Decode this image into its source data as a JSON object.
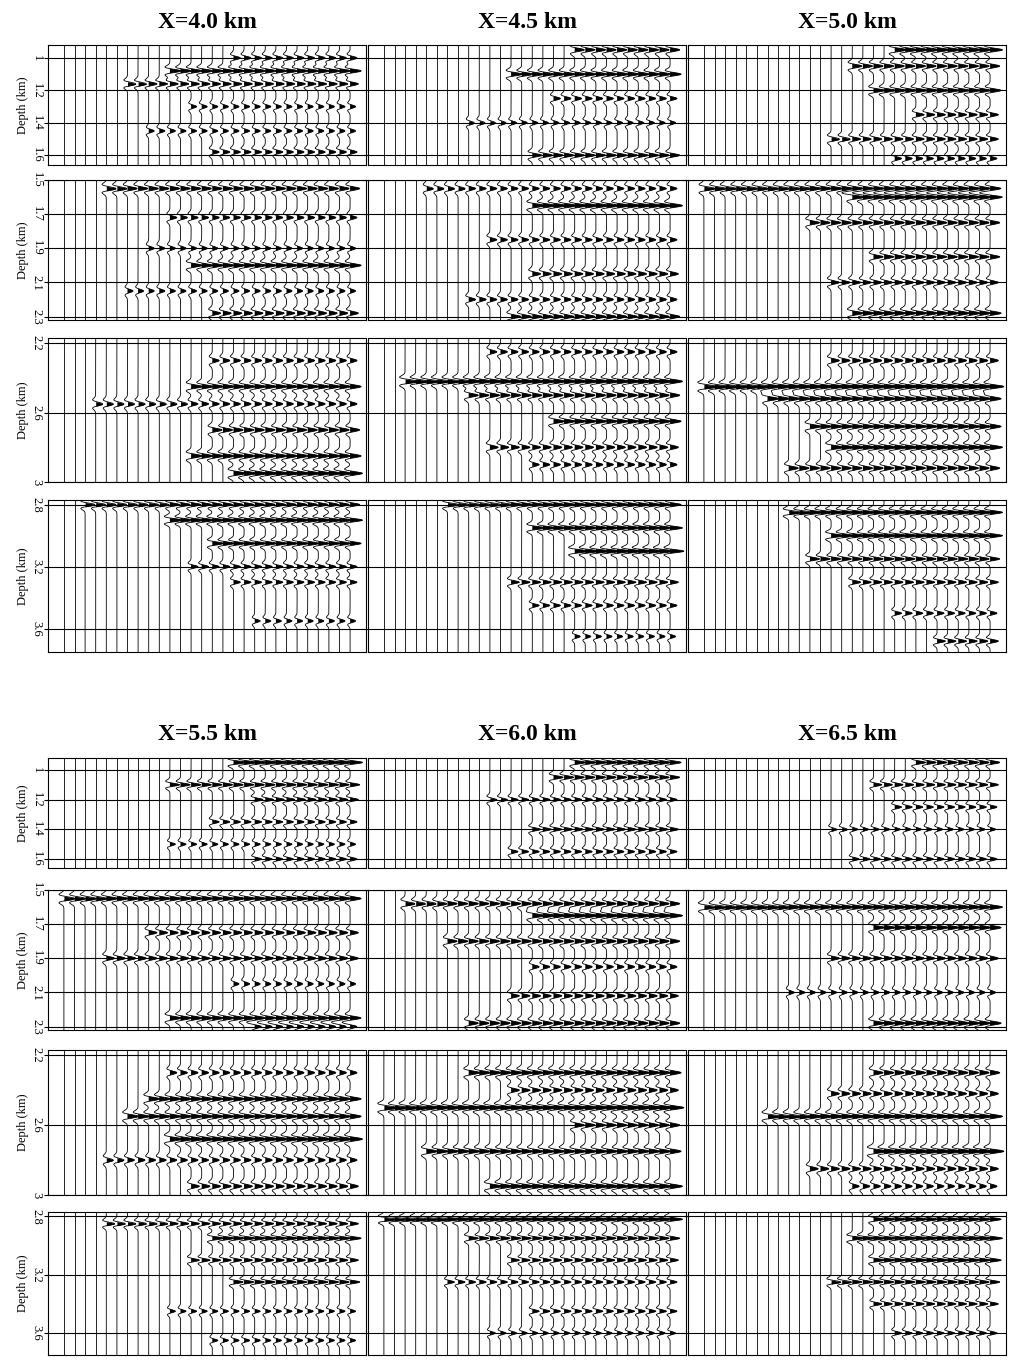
{
  "chart_data": {
    "type": "wiggle",
    "grid": true,
    "tick_labels": "y",
    "windows": [
      {
        "ylabel": "Depth (km)",
        "ylim": [
          0.92,
          1.66
        ],
        "yticks": [
          1,
          1.2,
          1.4,
          1.6
        ]
      },
      {
        "ylabel": "Depth (km)",
        "ylim": [
          1.5,
          2.32
        ],
        "yticks": [
          1.5,
          1.7,
          1.9,
          2.1,
          2.3
        ]
      },
      {
        "ylabel": "Depth (km)",
        "ylim": [
          2.17,
          3.0
        ],
        "yticks": [
          2.2,
          2.6,
          3
        ]
      },
      {
        "ylabel": "Depth (km)",
        "ylim": [
          2.77,
          3.75
        ],
        "yticks": [
          2.8,
          3.2,
          3.6
        ]
      }
    ],
    "panels": [
      {
        "title": "X=4.0 km",
        "traces": 28,
        "events": [
          [
            {
              "depth": 1.0,
              "amplitude": 0.5,
              "from_trace": 16
            },
            {
              "depth": 1.08,
              "amplitude": 0.8,
              "from_trace": 10
            },
            {
              "depth": 1.16,
              "amplitude": 0.6,
              "from_trace": 6
            },
            {
              "depth": 1.3,
              "amplitude": 0.4,
              "from_trace": 12
            },
            {
              "depth": 1.45,
              "amplitude": 0.4,
              "from_trace": 8
            },
            {
              "depth": 1.58,
              "amplitude": 0.5,
              "from_trace": 14
            }
          ],
          [
            {
              "depth": 1.55,
              "amplitude": 0.7,
              "from_trace": 4
            },
            {
              "depth": 1.72,
              "amplitude": 0.5,
              "from_trace": 10
            },
            {
              "depth": 1.9,
              "amplitude": 0.4,
              "from_trace": 8
            },
            {
              "depth": 2.0,
              "amplitude": 0.8,
              "from_trace": 12
            },
            {
              "depth": 2.15,
              "amplitude": 0.4,
              "from_trace": 6
            },
            {
              "depth": 2.28,
              "amplitude": 0.6,
              "from_trace": 14
            }
          ],
          [
            {
              "depth": 2.3,
              "amplitude": 0.5,
              "from_trace": 14
            },
            {
              "depth": 2.45,
              "amplitude": 0.8,
              "from_trace": 12
            },
            {
              "depth": 2.55,
              "amplitude": 0.5,
              "from_trace": 3
            },
            {
              "depth": 2.7,
              "amplitude": 0.7,
              "from_trace": 14
            },
            {
              "depth": 2.85,
              "amplitude": 0.8,
              "from_trace": 12
            },
            {
              "depth": 2.95,
              "amplitude": 0.9,
              "from_trace": 16
            }
          ],
          [
            {
              "depth": 2.8,
              "amplitude": 0.7,
              "from_trace": 2
            },
            {
              "depth": 2.9,
              "amplitude": 0.9,
              "from_trace": 10
            },
            {
              "depth": 3.05,
              "amplitude": 0.8,
              "from_trace": 14
            },
            {
              "depth": 3.2,
              "amplitude": 0.5,
              "from_trace": 12
            },
            {
              "depth": 3.3,
              "amplitude": 0.5,
              "from_trace": 16
            },
            {
              "depth": 3.55,
              "amplitude": 0.4,
              "from_trace": 18
            }
          ]
        ]
      },
      {
        "title": "X=4.5 km",
        "traces": 28,
        "events": [
          [
            {
              "depth": 0.95,
              "amplitude": 0.7,
              "from_trace": 18
            },
            {
              "depth": 1.1,
              "amplitude": 0.8,
              "from_trace": 12
            },
            {
              "depth": 1.25,
              "amplitude": 0.5,
              "from_trace": 16
            },
            {
              "depth": 1.4,
              "amplitude": 0.4,
              "from_trace": 8
            },
            {
              "depth": 1.6,
              "amplitude": 0.7,
              "from_trace": 14
            }
          ],
          [
            {
              "depth": 1.55,
              "amplitude": 0.5,
              "from_trace": 4
            },
            {
              "depth": 1.65,
              "amplitude": 0.9,
              "from_trace": 14
            },
            {
              "depth": 1.85,
              "amplitude": 0.5,
              "from_trace": 10
            },
            {
              "depth": 2.05,
              "amplitude": 0.6,
              "from_trace": 14
            },
            {
              "depth": 2.2,
              "amplitude": 0.5,
              "from_trace": 8
            },
            {
              "depth": 2.3,
              "amplitude": 0.7,
              "from_trace": 12
            }
          ],
          [
            {
              "depth": 2.25,
              "amplitude": 0.5,
              "from_trace": 10
            },
            {
              "depth": 2.42,
              "amplitude": 0.9,
              "from_trace": 2
            },
            {
              "depth": 2.5,
              "amplitude": 0.7,
              "from_trace": 8
            },
            {
              "depth": 2.65,
              "amplitude": 0.8,
              "from_trace": 16
            },
            {
              "depth": 2.8,
              "amplitude": 0.6,
              "from_trace": 10
            },
            {
              "depth": 2.9,
              "amplitude": 0.5,
              "from_trace": 14
            }
          ],
          [
            {
              "depth": 2.8,
              "amplitude": 0.8,
              "from_trace": 6
            },
            {
              "depth": 2.95,
              "amplitude": 0.9,
              "from_trace": 14
            },
            {
              "depth": 3.1,
              "amplitude": 1.0,
              "from_trace": 18
            },
            {
              "depth": 3.3,
              "amplitude": 0.6,
              "from_trace": 12
            },
            {
              "depth": 3.45,
              "amplitude": 0.5,
              "from_trace": 14
            },
            {
              "depth": 3.65,
              "amplitude": 0.4,
              "from_trace": 18
            }
          ]
        ]
      },
      {
        "title": "X=5.0 km",
        "traces": 28,
        "events": [
          [
            {
              "depth": 0.95,
              "amplitude": 0.9,
              "from_trace": 18
            },
            {
              "depth": 1.05,
              "amplitude": 0.7,
              "from_trace": 14
            },
            {
              "depth": 1.2,
              "amplitude": 0.8,
              "from_trace": 16
            },
            {
              "depth": 1.35,
              "amplitude": 0.6,
              "from_trace": 20
            },
            {
              "depth": 1.5,
              "amplitude": 0.6,
              "from_trace": 12
            },
            {
              "depth": 1.62,
              "amplitude": 0.5,
              "from_trace": 18
            }
          ],
          [
            {
              "depth": 1.55,
              "amplitude": 0.8,
              "from_trace": 0
            },
            {
              "depth": 1.6,
              "amplitude": 0.9,
              "from_trace": 14
            },
            {
              "depth": 1.75,
              "amplitude": 0.7,
              "from_trace": 10
            },
            {
              "depth": 1.95,
              "amplitude": 0.7,
              "from_trace": 16
            },
            {
              "depth": 2.1,
              "amplitude": 0.6,
              "from_trace": 12
            },
            {
              "depth": 2.28,
              "amplitude": 0.8,
              "from_trace": 14
            }
          ],
          [
            {
              "depth": 2.3,
              "amplitude": 0.6,
              "from_trace": 12
            },
            {
              "depth": 2.45,
              "amplitude": 1.0,
              "from_trace": 0
            },
            {
              "depth": 2.52,
              "amplitude": 0.8,
              "from_trace": 6
            },
            {
              "depth": 2.68,
              "amplitude": 0.8,
              "from_trace": 10
            },
            {
              "depth": 2.8,
              "amplitude": 0.9,
              "from_trace": 12
            },
            {
              "depth": 2.92,
              "amplitude": 0.7,
              "from_trace": 8
            }
          ],
          [
            {
              "depth": 2.85,
              "amplitude": 0.9,
              "from_trace": 8
            },
            {
              "depth": 3.0,
              "amplitude": 0.9,
              "from_trace": 12
            },
            {
              "depth": 3.15,
              "amplitude": 0.7,
              "from_trace": 10
            },
            {
              "depth": 3.3,
              "amplitude": 0.6,
              "from_trace": 14
            },
            {
              "depth": 3.5,
              "amplitude": 0.5,
              "from_trace": 18
            },
            {
              "depth": 3.68,
              "amplitude": 0.6,
              "from_trace": 22
            }
          ]
        ]
      },
      {
        "title": "X=5.5 km",
        "traces": 28,
        "events": [
          [
            {
              "depth": 0.95,
              "amplitude": 0.9,
              "from_trace": 16
            },
            {
              "depth": 1.1,
              "amplitude": 0.7,
              "from_trace": 10
            },
            {
              "depth": 1.2,
              "amplitude": 0.6,
              "from_trace": 18
            },
            {
              "depth": 1.35,
              "amplitude": 0.5,
              "from_trace": 14
            },
            {
              "depth": 1.5,
              "amplitude": 0.4,
              "from_trace": 10
            },
            {
              "depth": 1.6,
              "amplitude": 0.5,
              "from_trace": 18
            }
          ],
          [
            {
              "depth": 1.55,
              "amplitude": 0.8,
              "from_trace": 0
            },
            {
              "depth": 1.75,
              "amplitude": 0.6,
              "from_trace": 8
            },
            {
              "depth": 1.9,
              "amplitude": 0.6,
              "from_trace": 4
            },
            {
              "depth": 2.05,
              "amplitude": 0.4,
              "from_trace": 16
            },
            {
              "depth": 2.25,
              "amplitude": 0.8,
              "from_trace": 10
            },
            {
              "depth": 2.3,
              "amplitude": 0.5,
              "from_trace": 18
            }
          ],
          [
            {
              "depth": 2.3,
              "amplitude": 0.5,
              "from_trace": 10
            },
            {
              "depth": 2.45,
              "amplitude": 0.8,
              "from_trace": 8
            },
            {
              "depth": 2.55,
              "amplitude": 0.8,
              "from_trace": 6
            },
            {
              "depth": 2.68,
              "amplitude": 0.9,
              "from_trace": 10
            },
            {
              "depth": 2.8,
              "amplitude": 0.5,
              "from_trace": 4
            },
            {
              "depth": 2.95,
              "amplitude": 0.6,
              "from_trace": 12
            }
          ],
          [
            {
              "depth": 2.85,
              "amplitude": 0.6,
              "from_trace": 4
            },
            {
              "depth": 2.95,
              "amplitude": 0.8,
              "from_trace": 14
            },
            {
              "depth": 3.1,
              "amplitude": 0.6,
              "from_trace": 12
            },
            {
              "depth": 3.25,
              "amplitude": 0.7,
              "from_trace": 16
            },
            {
              "depth": 3.45,
              "amplitude": 0.4,
              "from_trace": 10
            },
            {
              "depth": 3.65,
              "amplitude": 0.4,
              "from_trace": 14
            }
          ]
        ]
      },
      {
        "title": "X=6.0 km",
        "traces": 28,
        "events": [
          [
            {
              "depth": 0.95,
              "amplitude": 0.8,
              "from_trace": 18
            },
            {
              "depth": 1.05,
              "amplitude": 0.7,
              "from_trace": 16
            },
            {
              "depth": 1.2,
              "amplitude": 0.5,
              "from_trace": 10
            },
            {
              "depth": 1.4,
              "amplitude": 0.6,
              "from_trace": 14
            },
            {
              "depth": 1.55,
              "amplitude": 0.5,
              "from_trace": 12
            }
          ],
          [
            {
              "depth": 1.58,
              "amplitude": 0.7,
              "from_trace": 2
            },
            {
              "depth": 1.65,
              "amplitude": 0.9,
              "from_trace": 14
            },
            {
              "depth": 1.8,
              "amplitude": 0.7,
              "from_trace": 6
            },
            {
              "depth": 1.95,
              "amplitude": 0.5,
              "from_trace": 14
            },
            {
              "depth": 2.12,
              "amplitude": 0.6,
              "from_trace": 12
            },
            {
              "depth": 2.28,
              "amplitude": 0.7,
              "from_trace": 8
            }
          ],
          [
            {
              "depth": 2.3,
              "amplitude": 0.8,
              "from_trace": 8
            },
            {
              "depth": 2.4,
              "amplitude": 0.6,
              "from_trace": 12
            },
            {
              "depth": 2.5,
              "amplitude": 1.0,
              "from_trace": 0
            },
            {
              "depth": 2.6,
              "amplitude": 0.7,
              "from_trace": 18
            },
            {
              "depth": 2.75,
              "amplitude": 0.8,
              "from_trace": 4
            },
            {
              "depth": 2.95,
              "amplitude": 0.9,
              "from_trace": 10
            }
          ],
          [
            {
              "depth": 2.82,
              "amplitude": 0.9,
              "from_trace": 0
            },
            {
              "depth": 2.95,
              "amplitude": 0.7,
              "from_trace": 8
            },
            {
              "depth": 3.1,
              "amplitude": 0.6,
              "from_trace": 12
            },
            {
              "depth": 3.25,
              "amplitude": 0.5,
              "from_trace": 6
            },
            {
              "depth": 3.45,
              "amplitude": 0.5,
              "from_trace": 14
            },
            {
              "depth": 3.6,
              "amplitude": 0.4,
              "from_trace": 10
            }
          ]
        ]
      },
      {
        "title": "X=6.5 km",
        "traces": 28,
        "events": [
          [
            {
              "depth": 0.95,
              "amplitude": 0.7,
              "from_trace": 20
            },
            {
              "depth": 1.1,
              "amplitude": 0.6,
              "from_trace": 16
            },
            {
              "depth": 1.25,
              "amplitude": 0.5,
              "from_trace": 18
            },
            {
              "depth": 1.4,
              "amplitude": 0.4,
              "from_trace": 12
            },
            {
              "depth": 1.6,
              "amplitude": 0.5,
              "from_trace": 14
            }
          ],
          [
            {
              "depth": 1.6,
              "amplitude": 0.9,
              "from_trace": 0
            },
            {
              "depth": 1.72,
              "amplitude": 0.8,
              "from_trace": 16
            },
            {
              "depth": 1.9,
              "amplitude": 0.6,
              "from_trace": 12
            },
            {
              "depth": 2.1,
              "amplitude": 0.4,
              "from_trace": 8
            },
            {
              "depth": 2.28,
              "amplitude": 0.8,
              "from_trace": 16
            }
          ],
          [
            {
              "depth": 2.3,
              "amplitude": 0.7,
              "from_trace": 16
            },
            {
              "depth": 2.42,
              "amplitude": 0.6,
              "from_trace": 12
            },
            {
              "depth": 2.55,
              "amplitude": 0.9,
              "from_trace": 6
            },
            {
              "depth": 2.75,
              "amplitude": 1.0,
              "from_trace": 16
            },
            {
              "depth": 2.85,
              "amplitude": 0.6,
              "from_trace": 10
            },
            {
              "depth": 2.95,
              "amplitude": 0.5,
              "from_trace": 14
            }
          ],
          [
            {
              "depth": 2.82,
              "amplitude": 0.8,
              "from_trace": 16
            },
            {
              "depth": 2.95,
              "amplitude": 0.9,
              "from_trace": 14
            },
            {
              "depth": 3.1,
              "amplitude": 0.8,
              "from_trace": 16
            },
            {
              "depth": 3.25,
              "amplitude": 0.7,
              "from_trace": 12
            },
            {
              "depth": 3.4,
              "amplitude": 0.6,
              "from_trace": 16
            },
            {
              "depth": 3.6,
              "amplitude": 0.5,
              "from_trace": 18
            }
          ]
        ]
      }
    ]
  }
}
